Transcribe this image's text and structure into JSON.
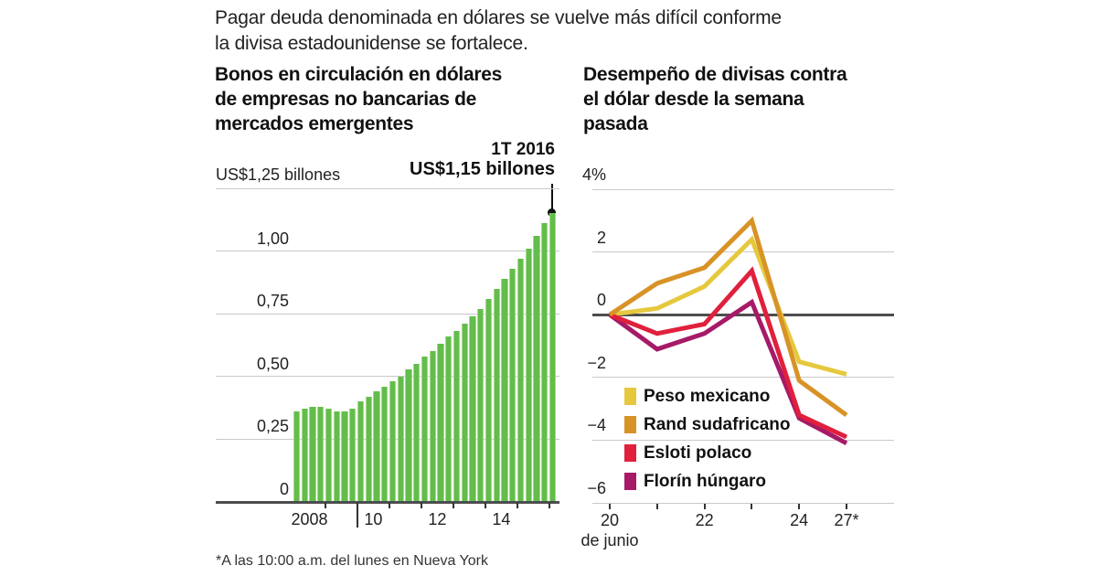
{
  "headline": {
    "line1": "Pagar deuda denominada en dólares se vuelve más difícil conforme",
    "line2": "la divisa estadounidense se fortalece."
  },
  "footnote": "*A las 10:00 a.m. del lunes en Nueva York",
  "left_chart": {
    "title_lines": [
      "Bonos en circulación en dólares",
      "de empresas no bancarias de",
      "mercados emergentes"
    ],
    "unit_label": "US$1,25 billones",
    "annotation": {
      "period": "1T 2016",
      "value": "US$1,15 billones"
    }
  },
  "right_chart": {
    "title_lines": [
      "Desempeño de divisas contra",
      "el dólar desde la semana",
      "pasada"
    ],
    "x_axis_note": "de junio"
  },
  "chart_data": [
    {
      "type": "bar",
      "title": "Bonos en circulación en dólares de empresas no bancarias de mercados emergentes",
      "unit_label": "US$1,25 billones",
      "ylim": [
        0,
        1.25
      ],
      "categories": [
        "2008 T1",
        "2008 T2",
        "2008 T3",
        "2008 T4",
        "2009 T1",
        "2009 T2",
        "2009 T3",
        "2009 T4",
        "2010 T1",
        "2010 T2",
        "2010 T3",
        "2010 T4",
        "2011 T1",
        "2011 T2",
        "2011 T3",
        "2011 T4",
        "2012 T1",
        "2012 T2",
        "2012 T3",
        "2012 T4",
        "2013 T1",
        "2013 T2",
        "2013 T3",
        "2013 T4",
        "2014 T1",
        "2014 T2",
        "2014 T3",
        "2014 T4",
        "2015 T1",
        "2015 T2",
        "2015 T3",
        "2015 T4",
        "2016 T1"
      ],
      "values": [
        0.36,
        0.37,
        0.38,
        0.38,
        0.37,
        0.36,
        0.36,
        0.37,
        0.4,
        0.42,
        0.44,
        0.46,
        0.48,
        0.5,
        0.53,
        0.55,
        0.58,
        0.6,
        0.63,
        0.66,
        0.68,
        0.71,
        0.74,
        0.77,
        0.81,
        0.85,
        0.89,
        0.93,
        0.97,
        1.01,
        1.06,
        1.11,
        1.15
      ],
      "y_tick_labels": [
        {
          "value": 1.0,
          "label": "1,00"
        },
        {
          "value": 0.75,
          "label": "0,75"
        },
        {
          "value": 0.5,
          "label": "0,50"
        },
        {
          "value": 0.25,
          "label": "0,25"
        },
        {
          "value": 0,
          "label": "0"
        }
      ],
      "gridline_values": [
        0.25,
        0.5,
        0.75,
        1.0,
        1.25
      ],
      "x_tick_labels": [
        {
          "year": 2008,
          "label": "2008"
        },
        {
          "year": 2010,
          "label": "10"
        },
        {
          "year": 2012,
          "label": "12"
        },
        {
          "year": 2014,
          "label": "14"
        }
      ],
      "annotation": {
        "label": "1T 2016",
        "value_label": "US$1,15 billones",
        "value": 1.15
      },
      "bar_color": "#62bd4a",
      "bar_edge_color": "#a5da8b"
    },
    {
      "type": "line",
      "title": "Desempeño de divisas contra el dólar desde la semana pasada",
      "x_values": [
        20,
        21,
        22,
        23,
        24,
        27
      ],
      "x_tick_labels": [
        "20",
        "",
        "22",
        "",
        "24",
        "27*"
      ],
      "x_axis_note": "de junio",
      "ylim": [
        -6,
        4
      ],
      "y_tick_labels": [
        {
          "value": 4,
          "label": "4%"
        },
        {
          "value": 2,
          "label": "2"
        },
        {
          "value": 0,
          "label": "0"
        },
        {
          "value": -2,
          "label": "−2"
        },
        {
          "value": -4,
          "label": "−4"
        },
        {
          "value": -6,
          "label": "−6"
        }
      ],
      "zero_line": true,
      "legend_position": "inside-bottom-left",
      "series": [
        {
          "name": "Peso mexicano",
          "color": "#e6c83e",
          "values": [
            0,
            0.2,
            0.9,
            2.4,
            -1.5,
            -1.9
          ]
        },
        {
          "name": "Rand sudafricano",
          "color": "#d89327",
          "values": [
            0,
            1.0,
            1.5,
            3.0,
            -2.1,
            -3.2
          ]
        },
        {
          "name": "Esloti polaco",
          "color": "#e0203c",
          "values": [
            0,
            -0.6,
            -0.3,
            1.4,
            -3.2,
            -3.9
          ]
        },
        {
          "name": "Florín húngaro",
          "color": "#a61a68",
          "values": [
            0,
            -1.1,
            -0.6,
            0.4,
            -3.3,
            -4.1
          ]
        }
      ]
    }
  ]
}
